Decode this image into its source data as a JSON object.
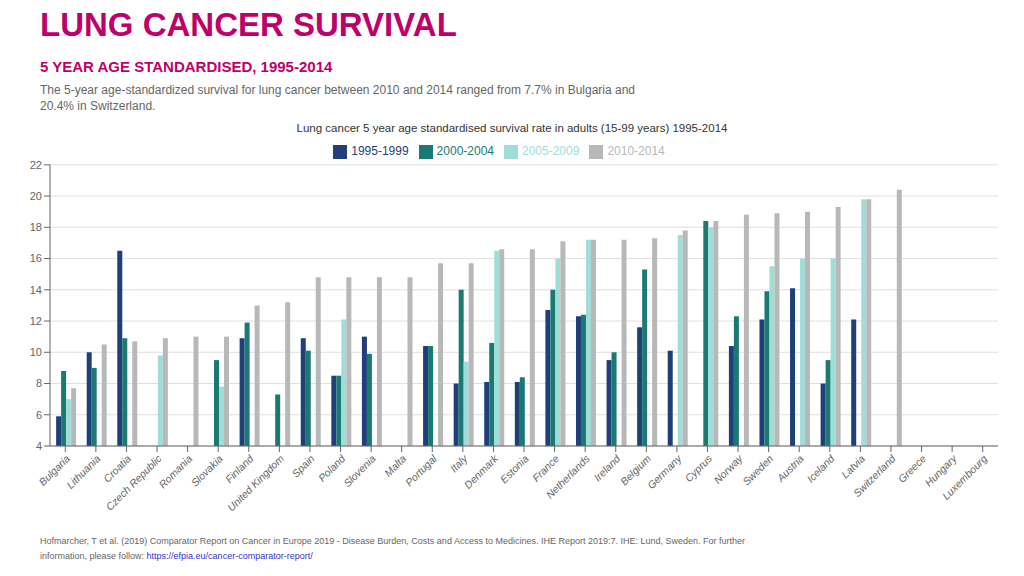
{
  "chart_data": {
    "type": "bar",
    "title": "LUNG CANCER SURVIVAL",
    "subtitle": "5 YEAR AGE STANDARDISED, 1995-2014",
    "annotations": [
      "The 5-year age-standardized survival for lung cancer between 2010 and 2014 ranged from 7.7% in Bulgaria and\n20.4% in Switzerland.",
      "Lung cancer 5 year age standardised survival rate in adults (15-99 years) 1995-2014",
      "Hofmarcher, T et al. (2019) Comparator Report on Cancer in Europe 2019 - Disease Burden, Costs and Access to Medicines. IHE Report 2019:7. IHE: Lund, Sweden. For further",
      "information, please follow:",
      "https://efpia.eu/cancer-comparator-report/"
    ],
    "categories": [
      "Bulgaria",
      "Lithuania",
      "Croatia",
      "Czech Republic",
      "Romania",
      "Slovakia",
      "Finland",
      "United Kingdom",
      "Spain",
      "Poland",
      "Slovenia",
      "Malta",
      "Portugal",
      "Italy",
      "Denmark",
      "Estonia",
      "France",
      "Netherlands",
      "Ireland",
      "Belgium",
      "Germany",
      "Cyprus",
      "Norway",
      "Sweden",
      "Austria",
      "Iceland",
      "Latvia",
      "Switzerland",
      "Greece",
      "Hungary",
      "Luxembourg"
    ],
    "series": [
      {
        "name": "1995-1999",
        "color": "#1f3f7a",
        "values": [
          5.9,
          10.0,
          16.5,
          null,
          null,
          null,
          10.9,
          null,
          10.9,
          8.5,
          11.0,
          null,
          10.4,
          8.0,
          8.1,
          8.1,
          12.7,
          12.3,
          9.5,
          11.6,
          10.1,
          null,
          10.4,
          12.1,
          14.1,
          8.0,
          12.1,
          null,
          null,
          null,
          null
        ]
      },
      {
        "name": "2000-2004",
        "color": "#1a7a72",
        "values": [
          8.8,
          9.0,
          10.9,
          null,
          null,
          9.5,
          11.9,
          7.3,
          10.1,
          8.5,
          9.9,
          null,
          10.4,
          14.0,
          10.6,
          8.4,
          14.0,
          12.4,
          10.0,
          15.3,
          null,
          18.4,
          12.3,
          13.9,
          null,
          9.5,
          null,
          null,
          null,
          null,
          null
        ]
      },
      {
        "name": "2005-2009",
        "color": "#a0ddd8",
        "values": [
          7.0,
          null,
          null,
          9.8,
          null,
          7.8,
          null,
          null,
          null,
          12.1,
          null,
          null,
          null,
          9.4,
          16.5,
          null,
          16.0,
          17.2,
          null,
          null,
          17.5,
          18.0,
          null,
          15.5,
          16.0,
          16.0,
          19.8,
          null,
          null,
          null,
          null
        ]
      },
      {
        "name": "2010-2014",
        "color": "#b8b8b8",
        "values": [
          7.7,
          10.5,
          10.7,
          10.9,
          11.0,
          11.0,
          13.0,
          13.2,
          14.8,
          14.8,
          14.8,
          14.8,
          15.7,
          15.7,
          16.6,
          16.6,
          17.1,
          17.2,
          17.2,
          17.3,
          17.8,
          18.4,
          18.8,
          18.9,
          19.0,
          19.3,
          19.8,
          20.4,
          null,
          null,
          null
        ]
      }
    ],
    "ylim": [
      4,
      22
    ],
    "yticks": [
      4,
      6,
      8,
      10,
      12,
      14,
      16,
      18,
      20,
      22
    ],
    "grid": true,
    "legend": "top"
  }
}
